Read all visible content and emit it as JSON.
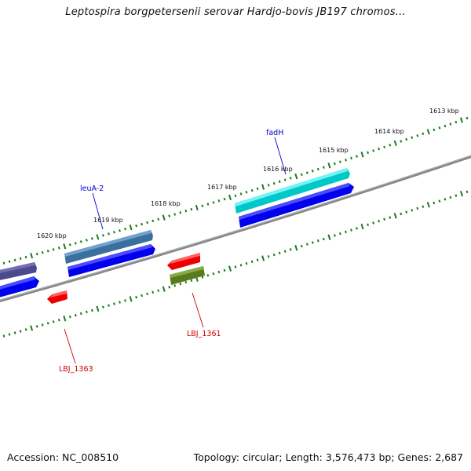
{
  "title": "Leptospira borgpetersenii serovar Hardjo-bovis JB197 chromos...",
  "footer": {
    "accession": "Accession: NC_008510",
    "info": "Topology: circular; Length: 3,576,473 bp; Genes: 2,687"
  },
  "colors": {
    "backbone": "#858585",
    "tick": "#1a7a1a",
    "forward_cds": "#0000ee",
    "gene_label_blue": "#0000cc",
    "gene_label_red": "#cc0000"
  },
  "ticks": [
    "1613 kbp",
    "1614 kbp",
    "1615 kbp",
    "1616 kbp",
    "1617 kbp",
    "1618 kbp",
    "1619 kbp",
    "1620 kbp"
  ],
  "gene_labels": {
    "fadH": "fadH",
    "leuA2": "leuA-2",
    "lbj1361": "LBJ_1361",
    "lbj1363": "LBJ_1363"
  }
}
